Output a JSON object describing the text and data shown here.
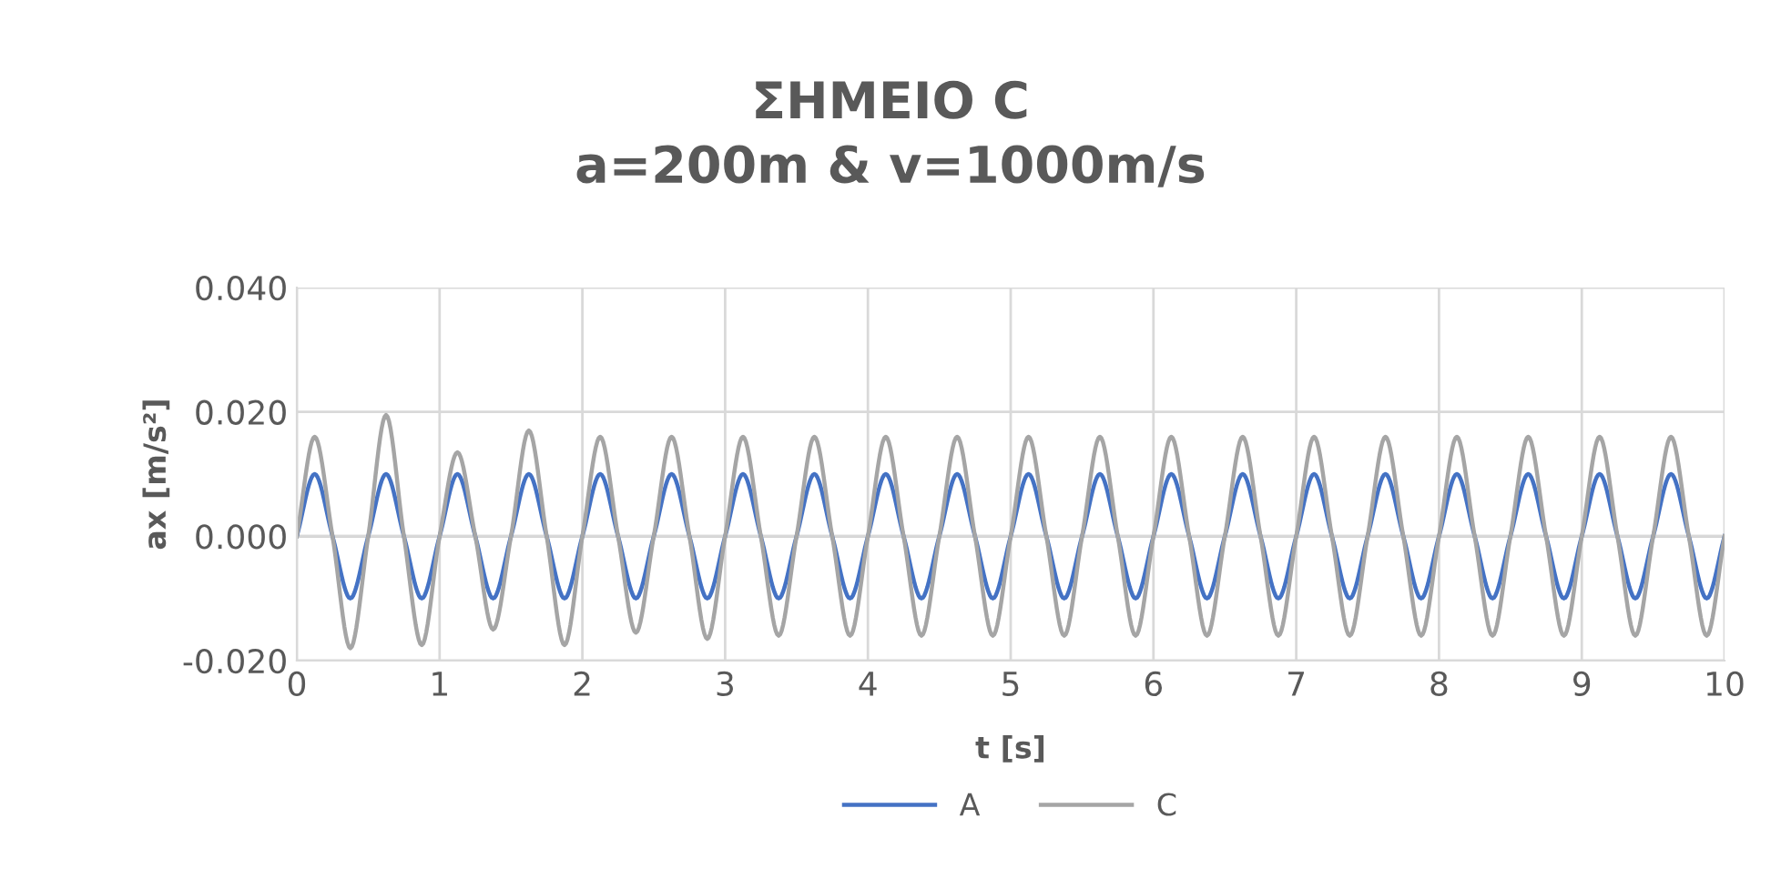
{
  "chart_data": {
    "type": "line",
    "title": "ΣΗΜΕΙΟ C\na=200m & v=1000m/s",
    "xlabel": "t [s]",
    "ylabel": "ax [m/s²]",
    "x": [
      0,
      0.125,
      0.25,
      0.375,
      0.5,
      0.625,
      0.75,
      0.875,
      1,
      1.125,
      1.25,
      1.375,
      1.5,
      1.625,
      1.75,
      1.875,
      2,
      2.125,
      2.25,
      2.375,
      2.5,
      2.625,
      2.75,
      2.875,
      3,
      3.125,
      3.25,
      3.375,
      3.5,
      3.625,
      3.75,
      3.875,
      4,
      4.125,
      4.25,
      4.375,
      4.5,
      4.625,
      4.75,
      4.875,
      5,
      5.125,
      5.25,
      5.375,
      5.5,
      5.625,
      5.75,
      5.875,
      6,
      6.125,
      6.25,
      6.375,
      6.5,
      6.625,
      6.75,
      6.875,
      7,
      7.125,
      7.25,
      7.375,
      7.5,
      7.625,
      7.75,
      7.875,
      8,
      8.125,
      8.25,
      8.375,
      8.5,
      8.625,
      8.75,
      8.875,
      9,
      9.125,
      9.25,
      9.375,
      9.5,
      9.625,
      9.75,
      9.875,
      10
    ],
    "series": [
      {
        "name": "A",
        "color": "#4472c4",
        "values": [
          0,
          0.01,
          0,
          -0.01,
          0,
          0.01,
          0,
          -0.01,
          0,
          0.01,
          0,
          -0.01,
          0,
          0.01,
          0,
          -0.01,
          0,
          0.01,
          0,
          -0.01,
          0,
          0.01,
          0,
          -0.01,
          0,
          0.01,
          0,
          -0.01,
          0,
          0.01,
          0,
          -0.01,
          0,
          0.01,
          0,
          -0.01,
          0,
          0.01,
          0,
          -0.01,
          0,
          0.01,
          0,
          -0.01,
          0,
          0.01,
          0,
          -0.01,
          0,
          0.01,
          0,
          -0.01,
          0,
          0.01,
          0,
          -0.01,
          0,
          0.01,
          0,
          -0.01,
          0,
          0.01,
          0,
          -0.01,
          0,
          0.01,
          0,
          -0.01,
          0,
          0.01,
          0,
          -0.01,
          0,
          0.01,
          0,
          -0.01,
          0,
          0.01,
          0,
          -0.01,
          0
        ]
      },
      {
        "name": "C",
        "color": "#a5a5a5",
        "values": [
          0,
          0.016,
          0,
          -0.018,
          0,
          0.0195,
          0,
          -0.0175,
          0,
          0.0135,
          0,
          -0.015,
          0,
          0.017,
          0,
          -0.0175,
          0,
          0.016,
          0,
          -0.0155,
          0,
          0.016,
          0,
          -0.0165,
          0,
          0.016,
          0,
          -0.016,
          0,
          0.016,
          0,
          -0.016,
          0,
          0.016,
          0,
          -0.016,
          0,
          0.016,
          0,
          -0.016,
          0,
          0.016,
          0,
          -0.016,
          0,
          0.016,
          0,
          -0.016,
          0,
          0.016,
          0,
          -0.016,
          0,
          0.016,
          0,
          -0.016,
          0,
          0.016,
          0,
          -0.016,
          0,
          0.016,
          0,
          -0.016,
          0,
          0.016,
          0,
          -0.016,
          0,
          0.016,
          0,
          -0.016,
          0,
          0.016,
          0,
          -0.016,
          0,
          0.016,
          0,
          -0.016,
          0
        ]
      }
    ],
    "xlim": [
      0,
      10
    ],
    "xticks": [
      0,
      1,
      2,
      3,
      4,
      5,
      6,
      7,
      8,
      9,
      10
    ],
    "ylim": [
      -0.02,
      0.04
    ],
    "yticks": [
      {
        "value": -0.02,
        "label": "-0.020"
      },
      {
        "value": 0,
        "label": "0.000"
      },
      {
        "value": 0.02,
        "label": "0.020"
      },
      {
        "value": 0.04,
        "label": "0.040"
      }
    ],
    "grid": true,
    "legend": "bottom",
    "marker": "none",
    "line_style": "solid"
  }
}
